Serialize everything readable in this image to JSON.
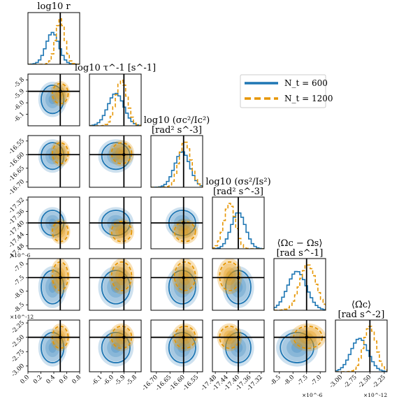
{
  "chart_data": {
    "type": "corner",
    "colors": {
      "n600": "#1f77b4",
      "n1200": "#e69500",
      "truth": "#000000"
    },
    "legend": {
      "placement": "top-right",
      "entries": [
        {
          "label": "N_t = 600",
          "color": "#1f77b4",
          "style": "solid"
        },
        {
          "label": "N_t = 1200",
          "color": "#e69500",
          "style": "dashed"
        }
      ]
    },
    "parameters": [
      {
        "title": "log10 r",
        "title_line2": "",
        "truth": 0.5,
        "range": [
          0.0,
          0.8
        ],
        "ticks": [
          "0.0",
          "0.2",
          "0.4",
          "0.6",
          "0.8"
        ],
        "offset": "",
        "n600": {
          "mean": 0.38,
          "sd": 0.1
        },
        "n1200": {
          "mean": 0.5,
          "sd": 0.07
        }
      },
      {
        "title": "log10 τ^-1 [s^-1]",
        "title_line2": "",
        "truth": -5.9,
        "range": [
          -6.2,
          -5.75
        ],
        "ticks": [
          "-6.1",
          "-6.0",
          "-5.9",
          "-5.8"
        ],
        "offset": "",
        "n600": {
          "mean": -5.97,
          "sd": 0.07
        },
        "n1200": {
          "mean": -5.92,
          "sd": 0.05
        }
      },
      {
        "title": "log10 (σc²/Ic²)",
        "title_line2": "[rad² s^-3]",
        "truth": -16.6,
        "range": [
          -16.72,
          -16.53
        ],
        "ticks": [
          "-16.70",
          "-16.65",
          "-16.60",
          "-16.55"
        ],
        "offset": "",
        "n600": {
          "mean": -16.605,
          "sd": 0.028
        },
        "n1200": {
          "mean": -16.595,
          "sd": 0.022
        }
      },
      {
        "title": "log10 (σs²/Is²)",
        "title_line2": "[rad² s^-3]",
        "truth": -17.4,
        "range": [
          -17.49,
          -17.31
        ],
        "ticks": [
          "-17.48",
          "-17.44",
          "-17.40",
          "-17.36",
          "-17.32"
        ],
        "offset": "",
        "n600": {
          "mean": -17.4,
          "sd": 0.025
        },
        "n1200": {
          "mean": -17.43,
          "sd": 0.02
        }
      },
      {
        "title": "⟨Ωc − Ωs⟩",
        "title_line2": "[rad s^-1]",
        "truth": -7.5,
        "range": [
          -8.7,
          -6.8
        ],
        "ticks": [
          "-8.5",
          "-8.0",
          "-7.5",
          "-7.0"
        ],
        "offset": "×10^-6",
        "n600": {
          "mean": -7.85,
          "sd": 0.35
        },
        "n1200": {
          "mean": -7.45,
          "sd": 0.3
        }
      },
      {
        "title": "⟨Ω̇c⟩",
        "title_line2": "[rad s^-2]",
        "truth": -2.5,
        "range": [
          -3.1,
          -2.2
        ],
        "ticks": [
          "-3.00",
          "-2.75",
          "-2.50",
          "-2.25"
        ],
        "offset": "×10^-12",
        "n600": {
          "mean": -2.68,
          "sd": 0.15
        },
        "n1200": {
          "mean": -2.5,
          "sd": 0.11
        }
      }
    ],
    "xlabel": "",
    "ylabel": "",
    "grid": false
  }
}
